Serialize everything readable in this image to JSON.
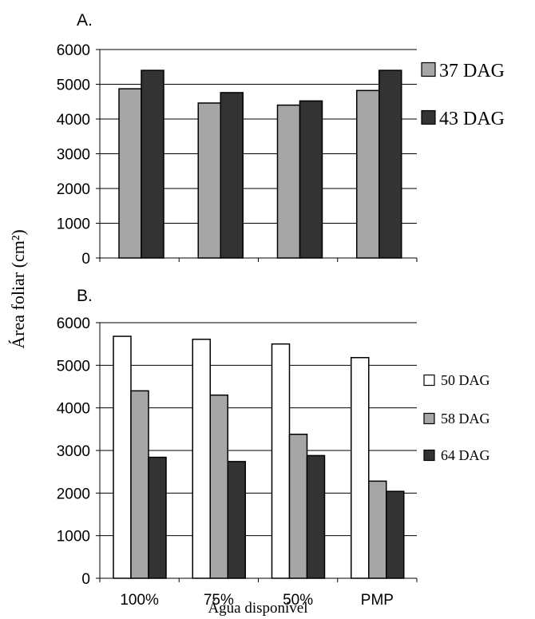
{
  "shared": {
    "ylabel": "Área foliar (cm²)",
    "xlabel": "Água disponível"
  },
  "chart_data": [
    {
      "panel_label": "A.",
      "type": "bar",
      "categories": [
        "100%",
        "75%",
        "50%",
        "PMP"
      ],
      "series": [
        {
          "name": "37 DAG",
          "color": "#a6a6a6",
          "values": [
            4870,
            4460,
            4400,
            4820
          ]
        },
        {
          "name": "43 DAG",
          "color": "#333333",
          "values": [
            5400,
            4760,
            4520,
            5400
          ]
        }
      ],
      "ylim": [
        0,
        6000
      ],
      "yticks": [
        "0",
        "1000",
        "2000",
        "3000",
        "4000",
        "5000",
        "6000"
      ],
      "grid": true,
      "legend": "right",
      "show_category_labels": false
    },
    {
      "panel_label": "B.",
      "type": "bar",
      "categories": [
        "100%",
        "75%",
        "50%",
        "PMP"
      ],
      "series": [
        {
          "name": "50 DAG",
          "color": "#ffffff",
          "values": [
            5680,
            5610,
            5500,
            5180
          ]
        },
        {
          "name": "58 DAG",
          "color": "#a6a6a6",
          "values": [
            4400,
            4300,
            3380,
            2280
          ]
        },
        {
          "name": "64 DAG",
          "color": "#333333",
          "values": [
            2840,
            2740,
            2880,
            2040
          ]
        }
      ],
      "ylim": [
        0,
        6000
      ],
      "yticks": [
        "0",
        "1000",
        "2000",
        "3000",
        "4000",
        "5000",
        "6000"
      ],
      "grid": true,
      "legend": "right",
      "show_category_labels": true
    }
  ]
}
